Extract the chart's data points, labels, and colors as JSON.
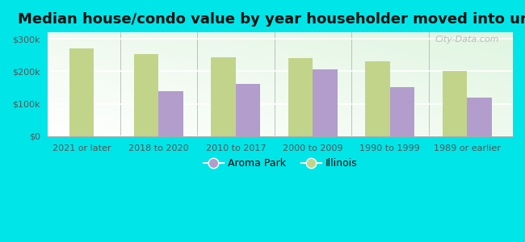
{
  "title": "Median house/condo value by year householder moved into unit",
  "categories": [
    "2021 or later",
    "2018 to 2020",
    "2010 to 2017",
    "2000 to 2009",
    "1990 to 1999",
    "1989 or earlier"
  ],
  "aroma_park": [
    0,
    140000,
    162000,
    207000,
    152000,
    120000
  ],
  "illinois": [
    270000,
    253000,
    243000,
    240000,
    232000,
    202000
  ],
  "aroma_park_color": "#b39dcc",
  "illinois_color": "#c2d48a",
  "outer_bg_color": "#00e5e8",
  "ylim": [
    0,
    320000
  ],
  "yticks": [
    0,
    100000,
    200000,
    300000
  ],
  "ytick_labels": [
    "$0",
    "$100k",
    "$200k",
    "$300k"
  ],
  "bar_width": 0.32,
  "legend_labels": [
    "Aroma Park",
    "Illinois"
  ],
  "watermark": "City-Data.com",
  "title_fontsize": 13,
  "tick_fontsize": 8,
  "legend_fontsize": 9
}
